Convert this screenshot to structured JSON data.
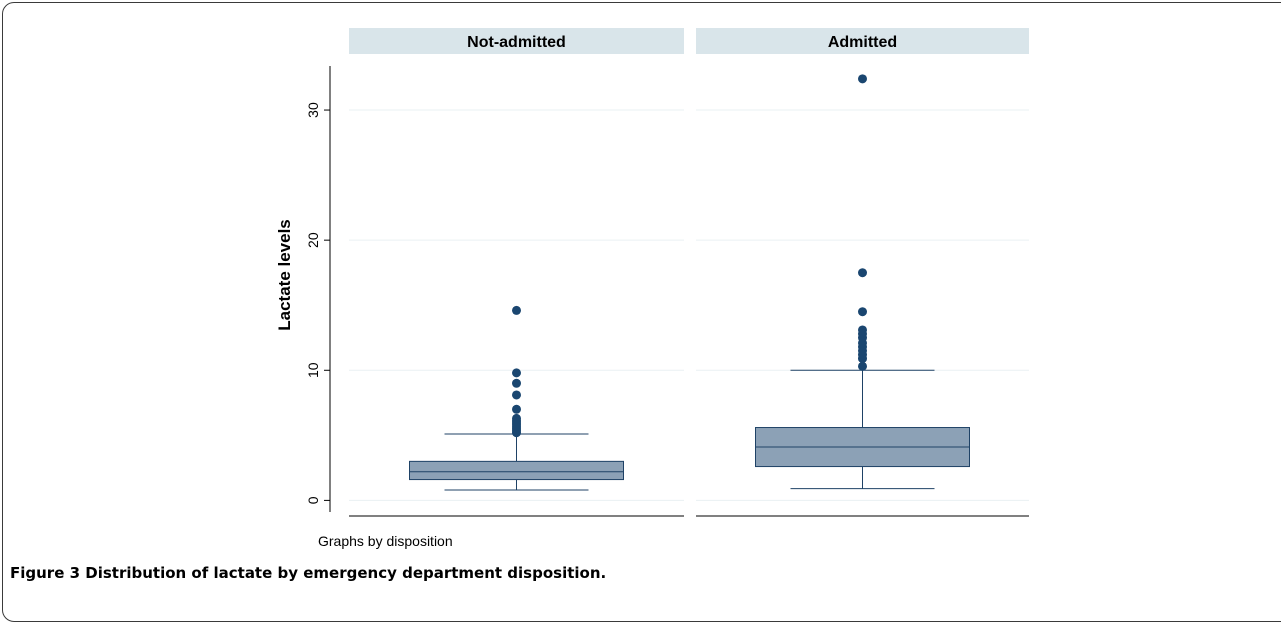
{
  "chart_data": {
    "type": "boxplot",
    "ylabel": "Lactate levels",
    "y_ticks": [
      0,
      10,
      20,
      30
    ],
    "ylim": [
      -1.2,
      34
    ],
    "grid": true,
    "note": "Graphs by disposition",
    "panels": [
      {
        "name": "Not-admitted",
        "whisker_low": 0.8,
        "q1": 1.6,
        "median": 2.2,
        "q3": 3.0,
        "whisker_high": 5.1,
        "outliers": [
          5.2,
          5.35,
          5.5,
          5.65,
          5.8,
          5.95,
          6.1,
          6.3,
          7.0,
          8.1,
          9.0,
          9.8,
          14.6
        ]
      },
      {
        "name": "Admitted",
        "whisker_low": 0.9,
        "q1": 2.6,
        "median": 4.1,
        "q3": 5.6,
        "whisker_high": 10.0,
        "outliers": [
          10.3,
          10.9,
          11.2,
          11.5,
          11.8,
          12.1,
          12.5,
          12.8,
          13.1,
          14.5,
          17.5,
          32.4
        ]
      }
    ],
    "colors": {
      "box_fill": "#8ca1b6",
      "box_stroke": "#1f4266",
      "outlier": "#1a4670",
      "strip_fill": "#d9e5ea",
      "grid": "#eaf0f3"
    }
  },
  "caption": {
    "label": "Figure 3",
    "text": " Distribution of lactate by emergency department disposition."
  }
}
